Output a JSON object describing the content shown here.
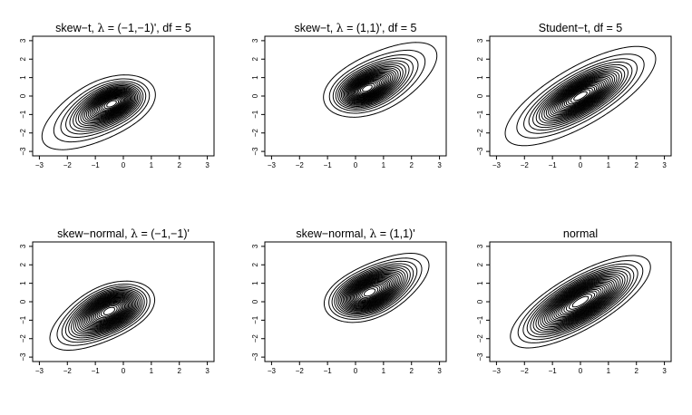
{
  "chart_data": [
    {
      "type": "contour",
      "title": "skew−t, λ = (−1,−1)', df = 5",
      "title_parts": [
        "skew−t, ",
        "λ",
        " = (−1,−1)', df = 5"
      ],
      "distribution": "skew-t",
      "lambda": [
        -1,
        -1
      ],
      "df": 5,
      "xlim": [
        -3,
        3
      ],
      "ylim": [
        -3,
        3
      ],
      "xticks": [
        "−3",
        "−2",
        "−1",
        "0",
        "1",
        "2",
        "3"
      ],
      "yticks": [
        "−3",
        "−2",
        "−1",
        "0",
        "1",
        "2",
        "3"
      ]
    },
    {
      "type": "contour",
      "title": "skew−t, λ = (1,1)', df = 5",
      "title_parts": [
        "skew−t, ",
        "λ",
        " = (1,1)', df = 5"
      ],
      "distribution": "skew-t",
      "lambda": [
        1,
        1
      ],
      "df": 5,
      "xlim": [
        -3,
        3
      ],
      "ylim": [
        -3,
        3
      ],
      "xticks": [
        "−3",
        "−2",
        "−1",
        "0",
        "1",
        "2",
        "3"
      ],
      "yticks": [
        "−3",
        "−2",
        "−1",
        "0",
        "1",
        "2",
        "3"
      ]
    },
    {
      "type": "contour",
      "title": "Student−t, df = 5",
      "title_parts": [
        "Student−t, df = 5",
        "",
        ""
      ],
      "distribution": "student-t",
      "lambda": [
        0,
        0
      ],
      "df": 5,
      "xlim": [
        -3,
        3
      ],
      "ylim": [
        -3,
        3
      ],
      "xticks": [
        "−3",
        "−2",
        "−1",
        "0",
        "1",
        "2",
        "3"
      ],
      "yticks": [
        "−3",
        "−2",
        "−1",
        "0",
        "1",
        "2",
        "3"
      ]
    },
    {
      "type": "contour",
      "title": "skew−normal, λ = (−1,−1)'",
      "title_parts": [
        "skew−normal, ",
        "λ",
        " = (−1,−1)'"
      ],
      "distribution": "skew-normal",
      "lambda": [
        -1,
        -1
      ],
      "df": null,
      "xlim": [
        -3,
        3
      ],
      "ylim": [
        -3,
        3
      ],
      "xticks": [
        "−3",
        "−2",
        "−1",
        "0",
        "1",
        "2",
        "3"
      ],
      "yticks": [
        "−3",
        "−2",
        "−1",
        "0",
        "1",
        "2",
        "3"
      ]
    },
    {
      "type": "contour",
      "title": "skew−normal, λ = (1,1)'",
      "title_parts": [
        "skew−normal, ",
        "λ",
        " = (1,1)'"
      ],
      "distribution": "skew-normal",
      "lambda": [
        1,
        1
      ],
      "df": null,
      "xlim": [
        -3,
        3
      ],
      "ylim": [
        -3,
        3
      ],
      "xticks": [
        "−3",
        "−2",
        "−1",
        "0",
        "1",
        "2",
        "3"
      ],
      "yticks": [
        "−3",
        "−2",
        "−1",
        "0",
        "1",
        "2",
        "3"
      ]
    },
    {
      "type": "contour",
      "title": "normal",
      "title_parts": [
        "normal",
        "",
        ""
      ],
      "distribution": "normal",
      "lambda": [
        0,
        0
      ],
      "df": null,
      "xlim": [
        -3,
        3
      ],
      "ylim": [
        -3,
        3
      ],
      "xticks": [
        "−3",
        "−2",
        "−1",
        "0",
        "1",
        "2",
        "3"
      ],
      "yticks": [
        "−3",
        "−2",
        "−1",
        "0",
        "1",
        "2",
        "3"
      ]
    }
  ]
}
